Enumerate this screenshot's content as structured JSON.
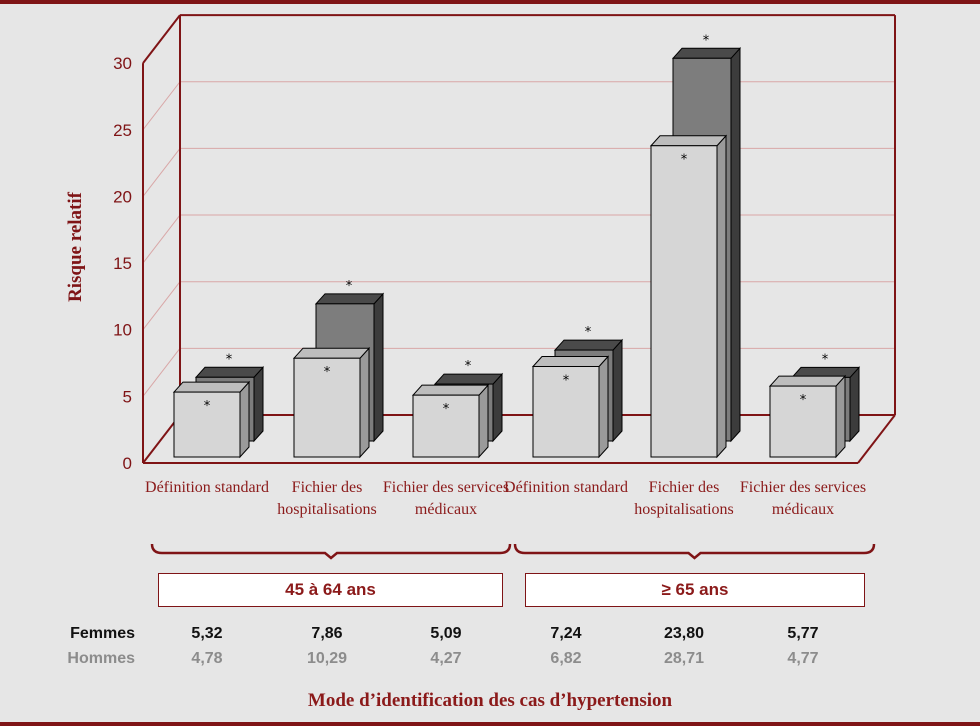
{
  "chart_data": {
    "type": "bar",
    "ylabel": "Risque relatif",
    "xlabel": "Mode d’identification des cas d’hypertension",
    "ylim": [
      0,
      30
    ],
    "yticks": [
      "0",
      "5",
      "10",
      "15",
      "20",
      "25",
      "30"
    ],
    "grid": true,
    "categories": [
      "Définition standard",
      "Fichier des hospitalisations",
      "Fichier des services médicaux",
      "Définition standard",
      "Fichier des hospitalisations",
      "Fichier des services médicaux"
    ],
    "groups": [
      {
        "label": "45 à 64 ans",
        "categories": [
          0,
          1,
          2
        ]
      },
      {
        "label": "≥ 65 ans",
        "categories": [
          3,
          4,
          5
        ]
      }
    ],
    "series": [
      {
        "name": "Femmes",
        "values": [
          5.32,
          7.86,
          5.09,
          7.24,
          23.8,
          5.77
        ],
        "labels": [
          "5,32",
          "7,86",
          "5,09",
          "7,24",
          "23,80",
          "5,77"
        ],
        "color": "#d6d6d6"
      },
      {
        "name": "Hommes",
        "values": [
          4.78,
          10.29,
          4.27,
          6.82,
          28.71,
          4.77
        ],
        "labels": [
          "4,78",
          "10,29",
          "4,27",
          "6,82",
          "28,71",
          "4,77"
        ],
        "color": "#7d7d7d"
      }
    ],
    "annotation": "*"
  },
  "colors": {
    "accent": "#7f1416",
    "background": "#e6e6e6",
    "femmes_bar": "#d6d6d6",
    "hommes_bar": "#7d7d7d",
    "hommes_text": "#8c8c8c"
  }
}
